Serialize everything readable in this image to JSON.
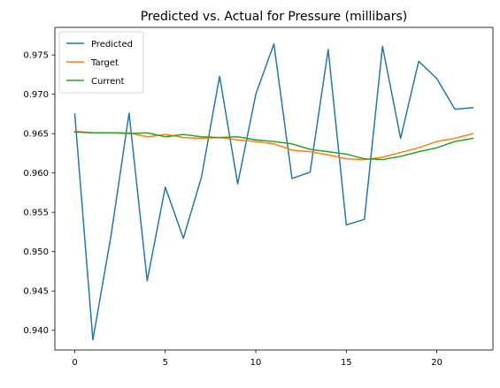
{
  "chart_data": {
    "type": "line",
    "title": "Predicted vs. Actual for Pressure (millibars)",
    "xlabel": "",
    "ylabel": "",
    "xlim": [
      -1.1,
      23.1
    ],
    "ylim": [
      0.9375,
      0.9785
    ],
    "x_ticks": [
      0,
      5,
      10,
      15,
      20
    ],
    "x_tick_labels": [
      "0",
      "5",
      "10",
      "15",
      "20"
    ],
    "y_ticks": [
      0.94,
      0.945,
      0.95,
      0.955,
      0.96,
      0.965,
      0.97,
      0.975
    ],
    "y_tick_labels": [
      "0.940",
      "0.945",
      "0.950",
      "0.955",
      "0.960",
      "0.965",
      "0.970",
      "0.975"
    ],
    "grid": false,
    "legend_position": "top-left",
    "x": [
      0,
      1,
      2,
      3,
      4,
      5,
      6,
      7,
      8,
      9,
      10,
      11,
      12,
      13,
      14,
      15,
      16,
      17,
      18,
      19,
      20,
      21,
      22
    ],
    "series": [
      {
        "name": "Predicted",
        "color": "#1f77b4",
        "values": [
          0.9675,
          0.9388,
          0.952,
          0.9676,
          0.9463,
          0.9582,
          0.9517,
          0.9595,
          0.9723,
          0.9586,
          0.97,
          0.9764,
          0.9593,
          0.9601,
          0.9757,
          0.9534,
          0.9541,
          0.9761,
          0.9644,
          0.9742,
          0.972,
          0.9681,
          0.9683
        ]
      },
      {
        "name": "Target",
        "color": "#ff7f0e",
        "values": [
          0.9653,
          0.9651,
          0.9651,
          0.9651,
          0.9646,
          0.9649,
          0.9645,
          0.9644,
          0.9645,
          0.9642,
          0.964,
          0.9637,
          0.9629,
          0.9627,
          0.9623,
          0.9618,
          0.9617,
          0.962,
          0.9626,
          0.9632,
          0.964,
          0.9644,
          0.965
        ]
      },
      {
        "name": "Current",
        "color": "#2ca02c",
        "values": [
          0.9652,
          0.9651,
          0.9651,
          0.965,
          0.9651,
          0.9646,
          0.9649,
          0.9646,
          0.9645,
          0.9646,
          0.9642,
          0.964,
          0.9637,
          0.963,
          0.9627,
          0.9624,
          0.9618,
          0.9617,
          0.9621,
          0.9627,
          0.9632,
          0.964,
          0.9644
        ]
      }
    ]
  }
}
